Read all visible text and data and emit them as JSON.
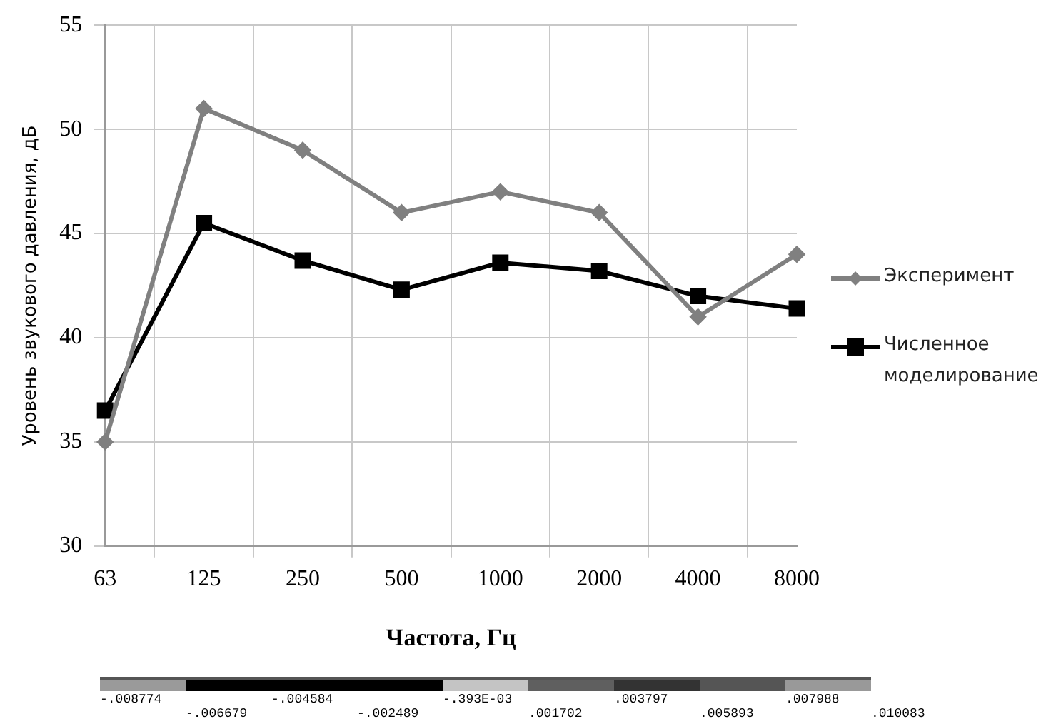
{
  "chart_data": {
    "type": "line",
    "xlabel": "Частота, Гц",
    "ylabel": "Уровень звукового давления, дБ",
    "categories": [
      "63",
      "125",
      "250",
      "500",
      "1000",
      "2000",
      "4000",
      "8000"
    ],
    "series": [
      {
        "name": "Эксперимент",
        "color": "#808080",
        "marker": "diamond",
        "values": [
          35,
          51,
          49,
          46,
          47,
          46,
          41,
          44
        ]
      },
      {
        "name": "Численное моделирование",
        "color": "#000000",
        "marker": "square",
        "values": [
          36.5,
          45.5,
          43.7,
          42.3,
          43.6,
          43.2,
          42.0,
          41.4
        ]
      }
    ],
    "ylim": [
      30,
      55
    ],
    "yticks": [
      30,
      35,
      40,
      45,
      50,
      55
    ],
    "grid": true,
    "legend": "right",
    "line_style": "solid",
    "annotations": [
      "-.008774",
      "-.006679",
      "-.004584",
      "-.002489",
      "-.393E-03",
      ".001702",
      ".003797",
      ".005893",
      ".007988",
      ".010083"
    ]
  }
}
